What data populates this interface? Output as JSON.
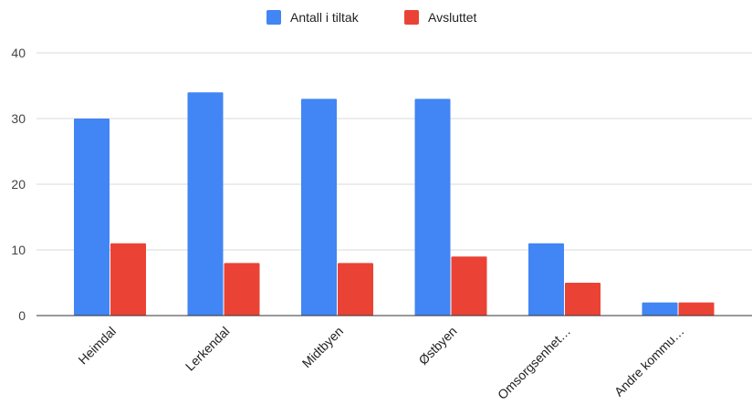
{
  "chart_data": {
    "type": "bar",
    "title": "",
    "xlabel": "",
    "ylabel": "",
    "categories": [
      "Heimdal",
      "Lerkendal",
      "Midtbyen",
      "Østbyen",
      "Omsorgsenhet…",
      "Andre kommu…"
    ],
    "series": [
      {
        "name": "Antall i tiltak",
        "color": "#4285f4",
        "values": [
          30,
          34,
          33,
          33,
          11,
          2
        ]
      },
      {
        "name": "Avsluttet",
        "color": "#ea4335",
        "values": [
          11,
          8,
          8,
          9,
          5,
          2
        ]
      }
    ],
    "ylim": [
      0,
      40
    ],
    "yticks": [
      0,
      10,
      20,
      30,
      40
    ],
    "grid": true,
    "legend_position": "top"
  }
}
